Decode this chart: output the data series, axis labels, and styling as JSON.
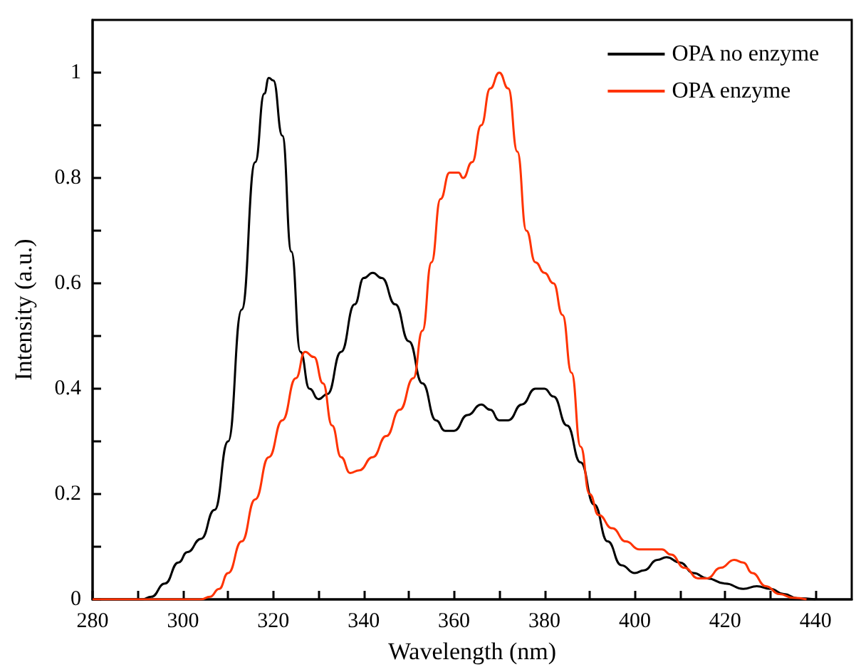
{
  "chart_data": {
    "type": "line",
    "xlabel": "Wavelength (nm)",
    "ylabel": "Intensity (a.u.)",
    "xlim": [
      280,
      448
    ],
    "ylim": [
      0,
      1.1
    ],
    "xticks": [
      280,
      {
        "value": 290,
        "label": null
      },
      300,
      {
        "value": 310,
        "label": null
      },
      320,
      {
        "value": 330,
        "label": null
      },
      340,
      {
        "value": 350,
        "label": null
      },
      360,
      {
        "value": 370,
        "label": null
      },
      380,
      {
        "value": 390,
        "label": null
      },
      400,
      {
        "value": 410,
        "label": null
      },
      420,
      {
        "value": 430,
        "label": null
      },
      440
    ],
    "yticks": [
      0,
      {
        "value": 0.1,
        "label": null
      },
      0.2,
      {
        "value": 0.3,
        "label": null
      },
      0.4,
      {
        "value": 0.5,
        "label": null
      },
      0.6,
      {
        "value": 0.7,
        "label": null
      },
      0.8,
      {
        "value": 0.9,
        "label": null
      },
      1
    ],
    "grid": false,
    "legend": "top right",
    "marker": "none",
    "line_style": "solid",
    "series": [
      {
        "name": "OPA no enzyme",
        "color": "#000000",
        "x": [
          280,
          291,
          293,
          296,
          299,
          301,
          304,
          307,
          310,
          313,
          316,
          318,
          319,
          320,
          322,
          324,
          326,
          328,
          330,
          332,
          335,
          338,
          340,
          342,
          344,
          347,
          350,
          353,
          356,
          358,
          360,
          363,
          366,
          368,
          370,
          372,
          375,
          378,
          380,
          382,
          385,
          388,
          391,
          394,
          397,
          400,
          402,
          405,
          407,
          410,
          413,
          416,
          420,
          424,
          427,
          430,
          433,
          436,
          440
        ],
        "values": [
          0,
          0,
          0.005,
          0.03,
          0.07,
          0.09,
          0.115,
          0.17,
          0.3,
          0.55,
          0.83,
          0.96,
          0.99,
          0.985,
          0.88,
          0.66,
          0.47,
          0.4,
          0.38,
          0.39,
          0.47,
          0.56,
          0.61,
          0.62,
          0.61,
          0.56,
          0.49,
          0.41,
          0.34,
          0.32,
          0.32,
          0.35,
          0.37,
          0.36,
          0.34,
          0.34,
          0.37,
          0.4,
          0.4,
          0.385,
          0.33,
          0.26,
          0.18,
          0.11,
          0.065,
          0.05,
          0.055,
          0.075,
          0.08,
          0.07,
          0.05,
          0.04,
          0.03,
          0.02,
          0.025,
          0.02,
          0.01,
          0.002,
          0
        ]
      },
      {
        "name": "OPA enzyme",
        "color": "#ff3300",
        "x": [
          280,
          304,
          306,
          308,
          310,
          313,
          316,
          319,
          322,
          325,
          327,
          329,
          331,
          333,
          335,
          337,
          339,
          342,
          345,
          348,
          351,
          353,
          355,
          357,
          359,
          361,
          362,
          364,
          366,
          368,
          370,
          372,
          374,
          376,
          378,
          380,
          382,
          384,
          386,
          388,
          390,
          392,
          395,
          398,
          401,
          404,
          406,
          408,
          411,
          414,
          416,
          419,
          422,
          424,
          426,
          429,
          432,
          435,
          438
        ],
        "values": [
          0,
          0,
          0.005,
          0.02,
          0.05,
          0.11,
          0.19,
          0.27,
          0.34,
          0.42,
          0.47,
          0.46,
          0.41,
          0.33,
          0.27,
          0.24,
          0.245,
          0.27,
          0.31,
          0.36,
          0.42,
          0.51,
          0.64,
          0.76,
          0.81,
          0.81,
          0.8,
          0.83,
          0.9,
          0.97,
          1,
          0.97,
          0.85,
          0.7,
          0.64,
          0.62,
          0.6,
          0.54,
          0.43,
          0.29,
          0.2,
          0.16,
          0.135,
          0.11,
          0.095,
          0.095,
          0.095,
          0.085,
          0.06,
          0.04,
          0.04,
          0.06,
          0.075,
          0.07,
          0.05,
          0.025,
          0.01,
          0.003,
          0
        ]
      }
    ]
  }
}
